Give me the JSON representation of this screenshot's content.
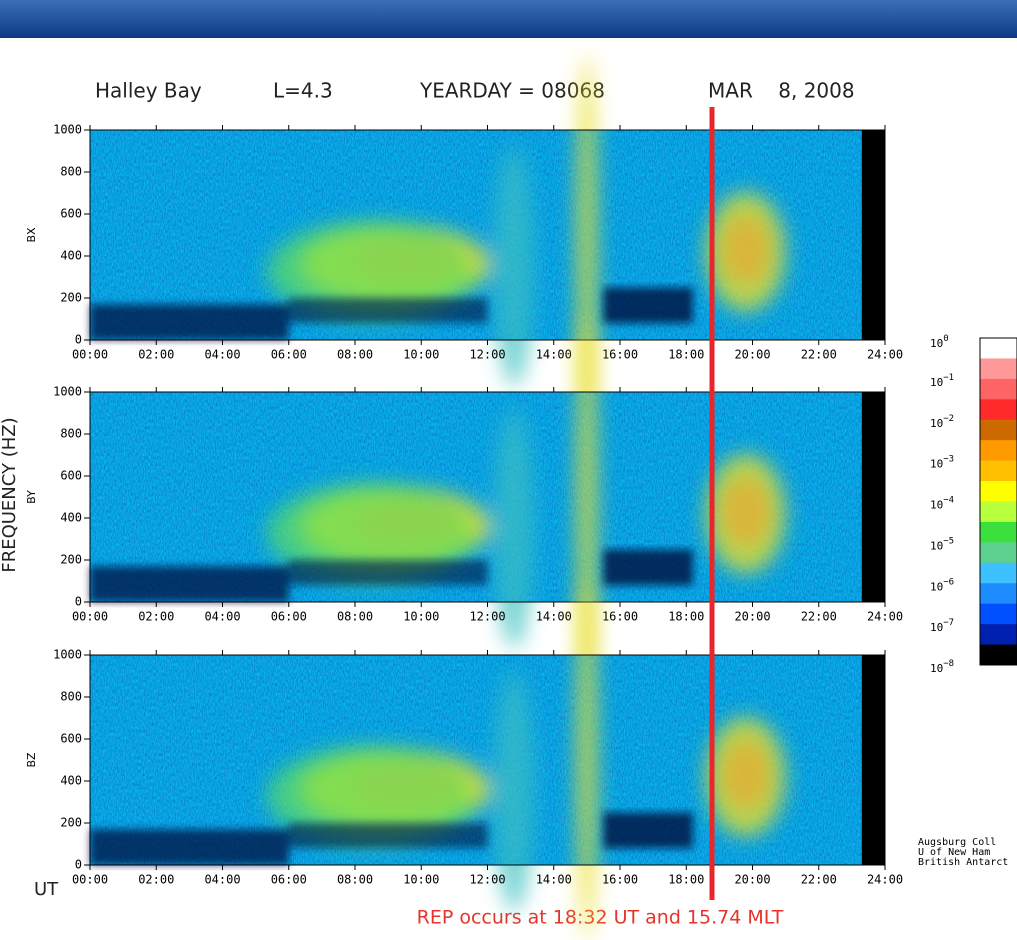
{
  "header": {
    "station": "Halley Bay",
    "lshell": "L=4.3",
    "yearday": "YEARDAY = 08068",
    "date": "MAR    8, 2008"
  },
  "y_axis_label": "FREQUENCY (HZ)",
  "panels": [
    {
      "label": "BX"
    },
    {
      "label": "BY"
    },
    {
      "label": "BZ"
    }
  ],
  "frequency_ticks": [
    0,
    200,
    400,
    600,
    800,
    1000
  ],
  "time_ticks": [
    "00:00",
    "02:00",
    "04:00",
    "06:00",
    "08:00",
    "10:00",
    "12:00",
    "14:00",
    "16:00",
    "18:00",
    "20:00",
    "22:00",
    "24:00"
  ],
  "time_axis_label": "UT",
  "colorbar": {
    "labels": [
      {
        "base": "10",
        "exp": "0"
      },
      {
        "base": "10",
        "exp": "−1"
      },
      {
        "base": "10",
        "exp": "−2"
      },
      {
        "base": "10",
        "exp": "−3"
      },
      {
        "base": "10",
        "exp": "−4"
      },
      {
        "base": "10",
        "exp": "−5"
      },
      {
        "base": "10",
        "exp": "−6"
      },
      {
        "base": "10",
        "exp": "−7"
      },
      {
        "base": "10",
        "exp": "−8"
      }
    ]
  },
  "credits": [
    "Augsburg Coll",
    "U of New Ham",
    "British Antarct"
  ],
  "annotation": "REP occurs at 18:32 UT and 15.74 MLT"
}
